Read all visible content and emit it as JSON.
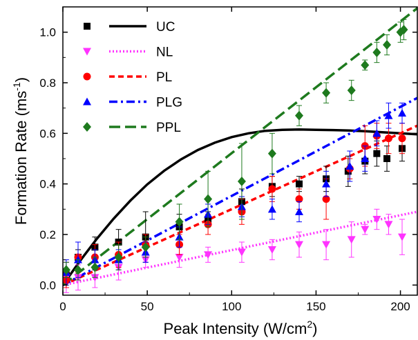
{
  "chart_data": {
    "type": "scatter",
    "xlabel": "Peak Intensity (W/cm",
    "xlabel_sup": "2",
    "xlabel_end": ")",
    "ylabel": "Formation Rate (ms",
    "ylabel_sup": "-1",
    "ylabel_end": ")",
    "xlim": [
      0,
      210
    ],
    "ylim": [
      -0.04,
      1.1
    ],
    "xticks": [
      0,
      50,
      100,
      150,
      200
    ],
    "yticks": [
      0.0,
      0.2,
      0.4,
      0.6,
      0.8,
      1.0
    ],
    "ytick_labels": [
      "0.0",
      "0.2",
      "0.4",
      "0.6",
      "0.8",
      "1.0"
    ],
    "xtick_labels": [
      "0",
      "50",
      "100",
      "150",
      "200"
    ],
    "grid": false,
    "legend_position": "top-left",
    "series": [
      {
        "name": "UC",
        "marker": "square",
        "color": "#000000",
        "line_style": "solid",
        "points": [
          {
            "x": 2,
            "y": 0.04,
            "err": 0.05
          },
          {
            "x": 9,
            "y": 0.11,
            "err": 0.03
          },
          {
            "x": 19,
            "y": 0.15,
            "err": 0.04
          },
          {
            "x": 33,
            "y": 0.17,
            "err": 0.05
          },
          {
            "x": 49,
            "y": 0.19,
            "err": 0.1
          },
          {
            "x": 69,
            "y": 0.23,
            "err": 0.05
          },
          {
            "x": 86,
            "y": 0.26,
            "err": 0.03
          },
          {
            "x": 106,
            "y": 0.33,
            "err": 0.05
          },
          {
            "x": 124,
            "y": 0.39,
            "err": 0.04
          },
          {
            "x": 140,
            "y": 0.4,
            "err": 0.03
          },
          {
            "x": 156,
            "y": 0.42,
            "err": 0.05
          },
          {
            "x": 169,
            "y": 0.45,
            "err": 0.06
          },
          {
            "x": 179,
            "y": 0.49,
            "err": 0.05
          },
          {
            "x": 186,
            "y": 0.52,
            "err": 0.05
          },
          {
            "x": 192,
            "y": 0.5,
            "err": 0.05
          },
          {
            "x": 201,
            "y": 0.54,
            "err": 0.05
          }
        ],
        "fit": [
          [
            0,
            0
          ],
          [
            10,
            0.094
          ],
          [
            20,
            0.182
          ],
          [
            30,
            0.262
          ],
          [
            40,
            0.334
          ],
          [
            50,
            0.398
          ],
          [
            60,
            0.452
          ],
          [
            70,
            0.497
          ],
          [
            80,
            0.534
          ],
          [
            90,
            0.563
          ],
          [
            100,
            0.585
          ],
          [
            110,
            0.6
          ],
          [
            120,
            0.61
          ],
          [
            130,
            0.614
          ],
          [
            140,
            0.615
          ],
          [
            150,
            0.614
          ],
          [
            160,
            0.613
          ],
          [
            170,
            0.611
          ],
          [
            180,
            0.608
          ],
          [
            190,
            0.604
          ],
          [
            200,
            0.6
          ],
          [
            210,
            0.596
          ]
        ]
      },
      {
        "name": "NL",
        "marker": "triangle-down",
        "color": "#ff33ff",
        "line_style": "dotted",
        "points": [
          {
            "x": 2,
            "y": 0.03,
            "err": 0.06
          },
          {
            "x": 9,
            "y": 0.03,
            "err": 0.05
          },
          {
            "x": 19,
            "y": 0.03,
            "err": 0.04
          },
          {
            "x": 33,
            "y": 0.07,
            "err": 0.05
          },
          {
            "x": 49,
            "y": 0.1,
            "err": 0.03
          },
          {
            "x": 69,
            "y": 0.11,
            "err": 0.04
          },
          {
            "x": 86,
            "y": 0.12,
            "err": 0.03
          },
          {
            "x": 106,
            "y": 0.13,
            "err": 0.04
          },
          {
            "x": 124,
            "y": 0.14,
            "err": 0.04
          },
          {
            "x": 140,
            "y": 0.16,
            "err": 0.05
          },
          {
            "x": 156,
            "y": 0.16,
            "err": 0.06
          },
          {
            "x": 171,
            "y": 0.18,
            "err": 0.07
          },
          {
            "x": 179,
            "y": 0.22,
            "err": 0.02
          },
          {
            "x": 186,
            "y": 0.26,
            "err": 0.04
          },
          {
            "x": 193,
            "y": 0.24,
            "err": 0.04
          },
          {
            "x": 201,
            "y": 0.19,
            "err": 0.07
          }
        ],
        "fit": [
          [
            0,
            0
          ],
          [
            210,
            0.29
          ]
        ]
      },
      {
        "name": "PL",
        "marker": "circle",
        "color": "#ff0000",
        "line_style": "dashed",
        "points": [
          {
            "x": 2,
            "y": 0.02,
            "err": 0.03
          },
          {
            "x": 9,
            "y": 0.11,
            "err": 0.06
          },
          {
            "x": 19,
            "y": 0.11,
            "err": 0.05
          },
          {
            "x": 33,
            "y": 0.12,
            "err": 0.05
          },
          {
            "x": 49,
            "y": 0.16,
            "err": 0.04
          },
          {
            "x": 69,
            "y": 0.16,
            "err": 0.04
          },
          {
            "x": 86,
            "y": 0.24,
            "err": 0.04
          },
          {
            "x": 106,
            "y": 0.29,
            "err": 0.05
          },
          {
            "x": 124,
            "y": 0.38,
            "err": 0.05
          },
          {
            "x": 140,
            "y": 0.34,
            "err": 0.04
          },
          {
            "x": 156,
            "y": 0.34,
            "err": 0.08
          },
          {
            "x": 170,
            "y": 0.46,
            "err": 0.04
          },
          {
            "x": 179,
            "y": 0.55,
            "err": 0.08
          },
          {
            "x": 186,
            "y": 0.59,
            "err": 0.05
          },
          {
            "x": 193,
            "y": 0.58,
            "err": 0.06
          },
          {
            "x": 201,
            "y": 0.58,
            "err": 0.06
          }
        ],
        "fit": [
          [
            0,
            0
          ],
          [
            210,
            0.63
          ]
        ]
      },
      {
        "name": "PLG",
        "marker": "triangle-up",
        "color": "#0000ff",
        "line_style": "dash-dot",
        "points": [
          {
            "x": 2,
            "y": 0.05,
            "err": 0.05
          },
          {
            "x": 9,
            "y": 0.1,
            "err": 0.07
          },
          {
            "x": 19,
            "y": 0.1,
            "err": 0.04
          },
          {
            "x": 33,
            "y": 0.1,
            "err": 0.04
          },
          {
            "x": 49,
            "y": 0.13,
            "err": 0.04
          },
          {
            "x": 69,
            "y": 0.19,
            "err": 0.04
          },
          {
            "x": 86,
            "y": 0.28,
            "err": 0.04
          },
          {
            "x": 106,
            "y": 0.31,
            "err": 0.04
          },
          {
            "x": 124,
            "y": 0.3,
            "err": 0.04
          },
          {
            "x": 140,
            "y": 0.29,
            "err": 0.04
          },
          {
            "x": 156,
            "y": 0.4,
            "err": 0.05
          },
          {
            "x": 170,
            "y": 0.47,
            "err": 0.06
          },
          {
            "x": 179,
            "y": 0.5,
            "err": 0.05
          },
          {
            "x": 186,
            "y": 0.6,
            "err": 0.05
          },
          {
            "x": 193,
            "y": 0.67,
            "err": 0.05
          },
          {
            "x": 201,
            "y": 0.68,
            "err": 0.04
          }
        ],
        "fit": [
          [
            0,
            0
          ],
          [
            210,
            0.74
          ]
        ]
      },
      {
        "name": "PPL",
        "marker": "diamond",
        "color": "#1e7a1e",
        "line_style": "long-dash",
        "points": [
          {
            "x": 2,
            "y": 0.06,
            "err": 0.03
          },
          {
            "x": 9,
            "y": 0.06,
            "err": 0.04
          },
          {
            "x": 19,
            "y": 0.07,
            "err": 0.04
          },
          {
            "x": 33,
            "y": 0.11,
            "err": 0.05
          },
          {
            "x": 49,
            "y": 0.15,
            "err": 0.04
          },
          {
            "x": 69,
            "y": 0.25,
            "err": 0.07
          },
          {
            "x": 86,
            "y": 0.34,
            "err": 0.11
          },
          {
            "x": 106,
            "y": 0.41,
            "err": 0.15
          },
          {
            "x": 124,
            "y": 0.52,
            "err": 0.08
          },
          {
            "x": 140,
            "y": 0.67,
            "err": 0.04
          },
          {
            "x": 156,
            "y": 0.76,
            "err": 0.04
          },
          {
            "x": 171,
            "y": 0.77,
            "err": 0.04
          },
          {
            "x": 179,
            "y": 0.87,
            "err": 0.02
          },
          {
            "x": 186,
            "y": 0.92,
            "err": 0.04
          },
          {
            "x": 192,
            "y": 0.95,
            "err": 0.04
          },
          {
            "x": 200,
            "y": 1.0,
            "err": 0.04
          },
          {
            "x": 202,
            "y": 1.01,
            "err": 0.04
          }
        ],
        "fit": [
          [
            0,
            0
          ],
          [
            211,
            1.1
          ]
        ]
      }
    ]
  }
}
